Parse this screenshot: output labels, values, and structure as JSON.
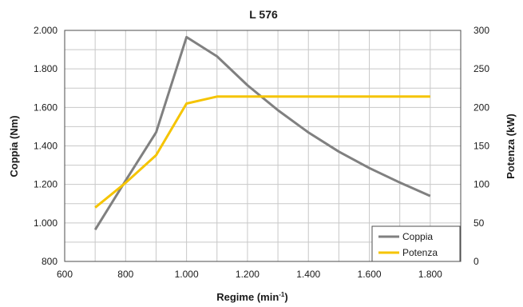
{
  "chart_data": {
    "type": "line",
    "title": "L 576",
    "xlabel": "Regime (min",
    "xlabel_sup": "-1",
    "xlabel_close": ")",
    "ylabel": "Coppia (Nm)",
    "y2label": "Potenza (kW)",
    "xlim": [
      600,
      1900
    ],
    "ylim": [
      800,
      2000
    ],
    "y2lim": [
      0,
      300
    ],
    "x_ticks": [
      600,
      800,
      1000,
      1200,
      1400,
      1600,
      1800
    ],
    "x_tick_labels": [
      "600",
      "800",
      "1.000",
      "1.200",
      "1.400",
      "1.600",
      "1.800"
    ],
    "y_ticks": [
      800,
      1000,
      1200,
      1400,
      1600,
      1800,
      2000
    ],
    "y_tick_labels": [
      "800",
      "1.000",
      "1.200",
      "1.400",
      "1.600",
      "1.800",
      "2.000"
    ],
    "y2_ticks": [
      0,
      50,
      100,
      150,
      200,
      250,
      300
    ],
    "y2_tick_labels": [
      "0",
      "50",
      "100",
      "150",
      "200",
      "250",
      "300"
    ],
    "grid": true,
    "legend_position": "bottom-right",
    "series": [
      {
        "name": "Coppia",
        "axis": "left",
        "color": "#808080",
        "x": [
          700,
          800,
          900,
          1000,
          1100,
          1200,
          1300,
          1400,
          1500,
          1600,
          1700,
          1800
        ],
        "y": [
          965,
          1220,
          1470,
          1965,
          1865,
          1715,
          1585,
          1470,
          1370,
          1285,
          1210,
          1140
        ]
      },
      {
        "name": "Potenza",
        "axis": "right",
        "color": "#f5c400",
        "x": [
          700,
          800,
          900,
          1000,
          1100,
          1200,
          1300,
          1400,
          1500,
          1600,
          1700,
          1800
        ],
        "y": [
          70,
          102,
          138,
          205,
          214,
          214,
          214,
          214,
          214,
          214,
          214,
          214
        ]
      }
    ]
  }
}
